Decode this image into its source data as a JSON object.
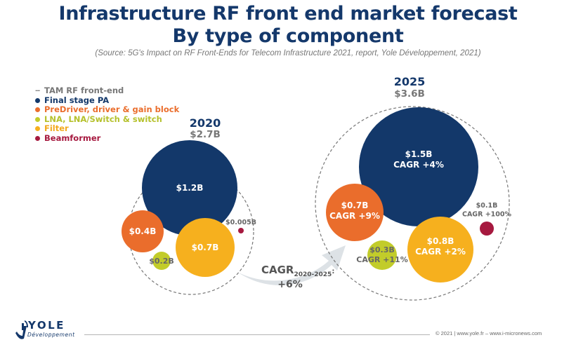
{
  "header": {
    "title_line1": "Infrastructure RF front end market forecast",
    "title_line2": "By type of component",
    "source": "(Source: 5G's Impact on RF Front-Ends for Telecom Infrastructure 2021, report, Yole Développement, 2021)"
  },
  "colors": {
    "title": "#14386b",
    "final_stage_pa": "#13386a",
    "predriver": "#ea6d2c",
    "lna": "#c2cc2a",
    "filter": "#f6b01e",
    "beamformer": "#a6193f",
    "tam": "#777777",
    "arrow": "#dde2e6"
  },
  "chart_data": {
    "type": "bubble",
    "title": "Infrastructure RF front end market forecast By type of component",
    "subtitle": "(Source: 5G's Impact on RF Front-Ends for Telecom Infrastructure 2021, report, Yole Développement, 2021)",
    "units": "USD billions",
    "legend": [
      {
        "name": "TAM RF front-end",
        "marker": "dashed",
        "color": "#888888",
        "text_color": "#777777"
      },
      {
        "name": "Final stage PA",
        "marker": "dot",
        "color": "#13386a",
        "text_color": "#13386a"
      },
      {
        "name": "PreDriver, driver & gain block",
        "marker": "dot",
        "color": "#ea6d2c",
        "text_color": "#ea6d2c"
      },
      {
        "name": "LNA, LNA/Switch & switch",
        "marker": "dot",
        "color": "#c2cc2a",
        "text_color": "#b5c12c"
      },
      {
        "name": "Filter",
        "marker": "dot",
        "color": "#f6b01e",
        "text_color": "#f2a91c"
      },
      {
        "name": "Beamformer",
        "marker": "dot",
        "color": "#a6193f",
        "text_color": "#a6193f"
      }
    ],
    "legend_position": "top-left",
    "groups": [
      {
        "year": "2020",
        "total_label": "$2.7B",
        "total": 2.7,
        "series": [
          {
            "name": "Final stage PA",
            "value": 1.2,
            "label": "$1.2B",
            "cagr": null
          },
          {
            "name": "PreDriver, driver & gain block",
            "value": 0.4,
            "label": "$0.4B",
            "cagr": null
          },
          {
            "name": "LNA, LNA/Switch & switch",
            "value": 0.2,
            "label": "$0.2B",
            "cagr": null
          },
          {
            "name": "Filter",
            "value": 0.7,
            "label": "$0.7B",
            "cagr": null
          },
          {
            "name": "Beamformer",
            "value": 0.005,
            "label": "$0.005B",
            "cagr": null
          }
        ]
      },
      {
        "year": "2025",
        "total_label": "$3.6B",
        "total": 3.6,
        "series": [
          {
            "name": "Final stage PA",
            "value": 1.5,
            "label": "$1.5B",
            "cagr": "CAGR +4%"
          },
          {
            "name": "PreDriver, driver & gain block",
            "value": 0.7,
            "label": "$0.7B",
            "cagr": "CAGR +9%"
          },
          {
            "name": "LNA, LNA/Switch & switch",
            "value": 0.3,
            "label": "$0.3B",
            "cagr": "CAGR +11%"
          },
          {
            "name": "Filter",
            "value": 0.8,
            "label": "$0.8B",
            "cagr": "CAGR +2%"
          },
          {
            "name": "Beamformer",
            "value": 0.1,
            "label": "$0.1B",
            "cagr": "CAGR +100%"
          }
        ]
      }
    ],
    "overall_cagr": {
      "label": "CAGR",
      "period": "2020-2025",
      "suffix": ":",
      "value": "+6%"
    }
  },
  "footer": {
    "logo_name": "YOLE",
    "logo_sub": "Développement",
    "copyright": "© 2021 | www.yole.fr – www.i-micronews.com"
  }
}
